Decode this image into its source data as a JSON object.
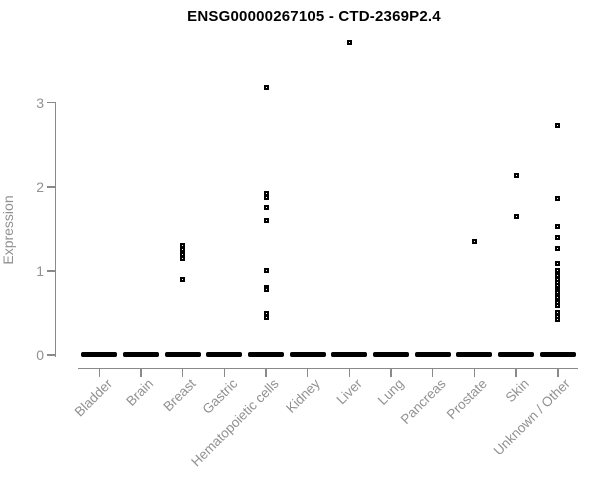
{
  "title": "ENSG00000267105 - CTD-2369P2.4",
  "chart_data": {
    "type": "scatter",
    "title": "ENSG00000267105 - CTD-2369P2.4",
    "subtitle": "",
    "xlabel": "",
    "ylabel": "Expression",
    "ylim": [
      0,
      3
    ],
    "yticks": [
      0,
      1,
      2,
      3
    ],
    "grid": false,
    "legend": "none",
    "marker": "open-square",
    "marker_color": "#000000",
    "axis_color": "#8a8a8a",
    "axis_text_color": "#919191",
    "categories": [
      "Bladder",
      "Brain",
      "Breast",
      "Gastric",
      "Hematopoietic cells",
      "Kidney",
      "Liver",
      "Lung",
      "Pancreas",
      "Prostate",
      "Skin",
      "Unknown / Other"
    ],
    "note": "Every category shows a dense horizontal cluster of overlapping points at expression = 0; values below are the non-zero points.",
    "series": [
      {
        "name": "Bladder",
        "zero_cluster": true,
        "values": []
      },
      {
        "name": "Brain",
        "zero_cluster": true,
        "values": []
      },
      {
        "name": "Breast",
        "zero_cluster": true,
        "values": [
          1.3,
          1.25,
          1.2,
          1.15,
          0.9
        ]
      },
      {
        "name": "Gastric",
        "zero_cluster": true,
        "values": []
      },
      {
        "name": "Hematopoietic cells",
        "zero_cluster": true,
        "values": [
          3.18,
          1.92,
          1.87,
          1.75,
          1.6,
          1.01,
          0.8,
          0.78,
          0.49,
          0.44
        ]
      },
      {
        "name": "Kidney",
        "zero_cluster": true,
        "values": []
      },
      {
        "name": "Liver",
        "zero_cluster": true,
        "values": [
          3.72
        ]
      },
      {
        "name": "Lung",
        "zero_cluster": true,
        "values": []
      },
      {
        "name": "Pancreas",
        "zero_cluster": true,
        "values": []
      },
      {
        "name": "Prostate",
        "zero_cluster": true,
        "values": [
          1.35
        ]
      },
      {
        "name": "Skin",
        "zero_cluster": true,
        "values": [
          2.13,
          1.65
        ]
      },
      {
        "name": "Unknown / Other",
        "zero_cluster": true,
        "values": [
          2.73,
          1.86,
          1.53,
          1.4,
          1.27,
          1.09,
          1.0,
          0.95,
          0.9,
          0.86,
          0.83,
          0.77,
          0.74,
          0.71,
          0.68,
          0.65,
          0.62,
          0.59,
          0.5,
          0.46,
          0.42
        ]
      }
    ]
  }
}
